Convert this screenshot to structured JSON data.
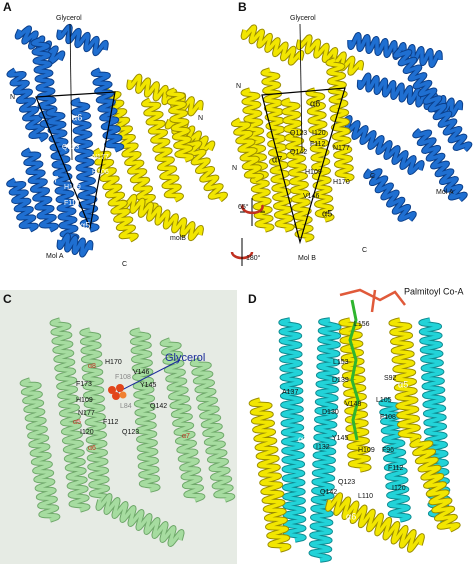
{
  "panels": [
    {
      "label": "A",
      "texts": [
        "Glycerol",
        "N",
        "N",
        "α6",
        "Q123",
        "N177",
        "H106",
        "α7",
        "H109",
        "F112",
        "α5",
        "Mol A",
        "molB",
        "C"
      ]
    },
    {
      "label": "B",
      "texts": [
        "Glycerol",
        "α6",
        "Q123",
        "I120",
        "Q142",
        "F112",
        "N177",
        "α7",
        "H109",
        "V146",
        "H170",
        "α5",
        "N",
        "N",
        "C",
        "C",
        "Mol A",
        "Mol B",
        "65°",
        "180°"
      ]
    },
    {
      "label": "C",
      "texts": [
        "α8",
        "H170",
        "V146",
        "F108",
        "Y145",
        "F173",
        "Glycerol",
        "H109",
        "L84",
        "Q142",
        "N177",
        "F112",
        "α5",
        "I120",
        "Q123",
        "α6",
        "α7"
      ]
    },
    {
      "label": "D",
      "texts": [
        "Palmitoyl Co-A",
        "L156",
        "L153",
        "D139",
        "S92",
        "A137",
        "α5",
        "V148",
        "L105",
        "D130",
        "F108",
        "α7",
        "Y145",
        "I132",
        "H109",
        "F96",
        "F112",
        "Q142",
        "Q123",
        "L110",
        "I120",
        "α6"
      ]
    }
  ]
}
